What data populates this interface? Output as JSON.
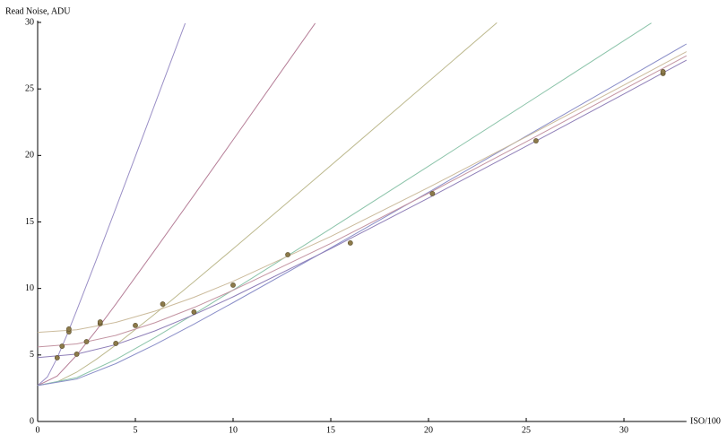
{
  "chart_data": {
    "type": "line",
    "y_label": "Read Noise, ADU",
    "x_label": "ISO/100",
    "xlim": [
      0,
      33.2
    ],
    "ylim": [
      0,
      30
    ],
    "xticks": [
      0,
      5,
      10,
      15,
      20,
      25,
      30
    ],
    "yticks": [
      0,
      5,
      10,
      15,
      20,
      25,
      30
    ],
    "series": [
      {
        "color": "#9a8fc6",
        "x": [
          0,
          0.5,
          1,
          1.5,
          2,
          3,
          4,
          5,
          6,
          7,
          7.55
        ],
        "values": [
          2.7,
          3.35,
          4.78,
          6.51,
          8.35,
          12.15,
          16.03,
          19.93,
          23.85,
          27.78,
          29.94
        ]
      },
      {
        "color": "#b67f98",
        "x": [
          0,
          1,
          2,
          3,
          4,
          6,
          8,
          10,
          12,
          14.2
        ],
        "values": [
          2.7,
          3.42,
          4.99,
          6.85,
          8.82,
          12.89,
          17.01,
          21.17,
          25.34,
          29.94
        ]
      },
      {
        "color": "#bdb98e",
        "x": [
          0,
          1,
          2,
          3,
          4,
          6,
          8,
          10,
          14,
          18,
          23.5
        ],
        "values": [
          2.7,
          2.98,
          3.71,
          4.67,
          5.75,
          8.08,
          10.51,
          12.98,
          17.98,
          23.02,
          29.97
        ]
      },
      {
        "color": "#8cc4aa",
        "x": [
          0,
          2,
          4,
          6,
          8,
          10,
          15,
          20,
          25,
          31.4
        ],
        "values": [
          2.7,
          3.3,
          4.66,
          6.31,
          8.07,
          9.88,
          14.5,
          19.19,
          23.9,
          29.95
        ]
      },
      {
        "color": "#8a8ec8",
        "x": [
          0,
          2,
          4,
          6,
          8,
          10,
          15,
          20,
          25,
          30,
          33.2
        ],
        "values": [
          2.7,
          3.19,
          4.35,
          5.78,
          7.32,
          8.93,
          13.05,
          17.23,
          21.45,
          25.67,
          28.38
        ]
      },
      {
        "color": "#8f7fb8",
        "x": [
          0,
          2,
          4,
          6,
          8,
          10,
          15,
          20,
          25,
          30,
          33.2
        ],
        "values": [
          4.8,
          5.06,
          5.78,
          6.81,
          8.03,
          9.37,
          12.99,
          16.8,
          20.69,
          24.62,
          27.16
        ]
      },
      {
        "color": "#c394a2",
        "x": [
          0,
          2,
          4,
          6,
          8,
          10,
          15,
          20,
          25,
          30,
          33.2
        ],
        "values": [
          5.6,
          5.83,
          6.47,
          7.42,
          8.57,
          9.86,
          13.39,
          17.16,
          21.03,
          24.97,
          27.49
        ]
      },
      {
        "color": "#cbbb9c",
        "x": [
          0,
          2,
          4,
          6,
          8,
          10,
          15,
          20,
          25,
          30,
          33.2
        ],
        "values": [
          6.7,
          6.89,
          7.45,
          8.29,
          9.34,
          10.54,
          13.91,
          17.59,
          21.4,
          25.29,
          27.8
        ]
      }
    ],
    "markers": {
      "color": "#8c7a4a",
      "x": [
        1,
        1.25,
        1.6,
        1.6,
        2,
        2.5,
        3.2,
        3.2,
        4,
        5,
        6.4,
        8,
        10,
        12.8,
        16,
        20.2,
        25.5,
        32,
        32
      ],
      "values": [
        4.79,
        5.66,
        6.74,
        6.95,
        5.06,
        6.0,
        7.35,
        7.48,
        5.87,
        7.22,
        8.83,
        8.23,
        10.25,
        12.54,
        13.42,
        17.13,
        21.1,
        26.16,
        26.3
      ]
    }
  }
}
